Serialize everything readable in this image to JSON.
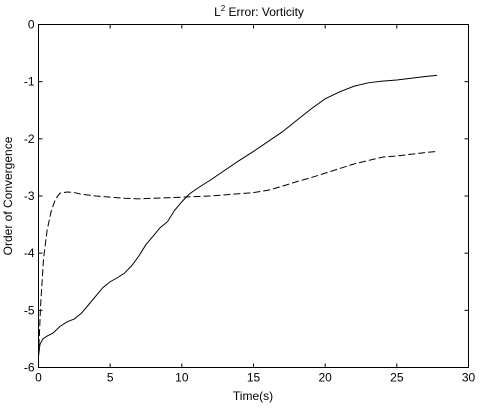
{
  "chart_data": {
    "type": "line",
    "title": "L",
    "title_superscript": "2",
    "title_rest": " Error: Vorticity",
    "xlabel": "Time(s)",
    "ylabel": "Order of Convergence",
    "xlim": [
      0,
      30
    ],
    "ylim": [
      -6,
      0
    ],
    "xticks": [
      0,
      5,
      10,
      15,
      20,
      25,
      30
    ],
    "yticks": [
      0,
      -1,
      -2,
      -3,
      -4,
      -5,
      -6
    ],
    "xtick_labels": [
      "0",
      "5",
      "10",
      "15",
      "20",
      "25",
      "30"
    ],
    "ytick_labels": [
      "0",
      "-1",
      "-2",
      "-3",
      "-4",
      "-5",
      "-6"
    ],
    "grid": false,
    "series": [
      {
        "style": "solid",
        "color": "#000000",
        "x": [
          0,
          0.1,
          0.3,
          0.6,
          1.0,
          1.5,
          2.0,
          2.5,
          3.0,
          3.5,
          4.0,
          4.5,
          5.0,
          5.5,
          6.0,
          6.5,
          7.0,
          7.5,
          8.0,
          8.5,
          9.0,
          9.5,
          10.0,
          10.5,
          11.0,
          12.0,
          13.0,
          14.0,
          15.0,
          16.0,
          17.0,
          18.0,
          19.0,
          20.0,
          21.0,
          22.0,
          23.0,
          24.0,
          25.0,
          26.0,
          27.0,
          27.8
        ],
        "y": [
          -5.8,
          -5.6,
          -5.5,
          -5.45,
          -5.4,
          -5.28,
          -5.2,
          -5.15,
          -5.05,
          -4.9,
          -4.75,
          -4.6,
          -4.5,
          -4.43,
          -4.35,
          -4.22,
          -4.05,
          -3.85,
          -3.7,
          -3.55,
          -3.45,
          -3.25,
          -3.1,
          -2.97,
          -2.88,
          -2.72,
          -2.55,
          -2.38,
          -2.22,
          -2.05,
          -1.88,
          -1.68,
          -1.48,
          -1.3,
          -1.18,
          -1.08,
          -1.02,
          -0.99,
          -0.97,
          -0.94,
          -0.91,
          -0.89
        ]
      },
      {
        "style": "dashed",
        "color": "#000000",
        "x": [
          0,
          0.15,
          0.35,
          0.6,
          0.9,
          1.2,
          1.5,
          2.0,
          2.5,
          3.0,
          4.0,
          5.0,
          6.0,
          7.0,
          8.0,
          9.0,
          10.0,
          11.0,
          12.0,
          13.0,
          14.0,
          15.0,
          16.0,
          17.0,
          18.0,
          19.0,
          20.0,
          21.0,
          22.0,
          23.0,
          24.0,
          25.0,
          26.0,
          27.0,
          27.8
        ],
        "y": [
          -5.8,
          -4.9,
          -4.1,
          -3.6,
          -3.25,
          -3.05,
          -2.95,
          -2.93,
          -2.94,
          -2.97,
          -3.0,
          -3.02,
          -3.04,
          -3.05,
          -3.04,
          -3.03,
          -3.02,
          -3.01,
          -3.0,
          -2.98,
          -2.96,
          -2.94,
          -2.9,
          -2.83,
          -2.75,
          -2.68,
          -2.6,
          -2.52,
          -2.44,
          -2.38,
          -2.32,
          -2.3,
          -2.27,
          -2.24,
          -2.22
        ]
      }
    ]
  }
}
